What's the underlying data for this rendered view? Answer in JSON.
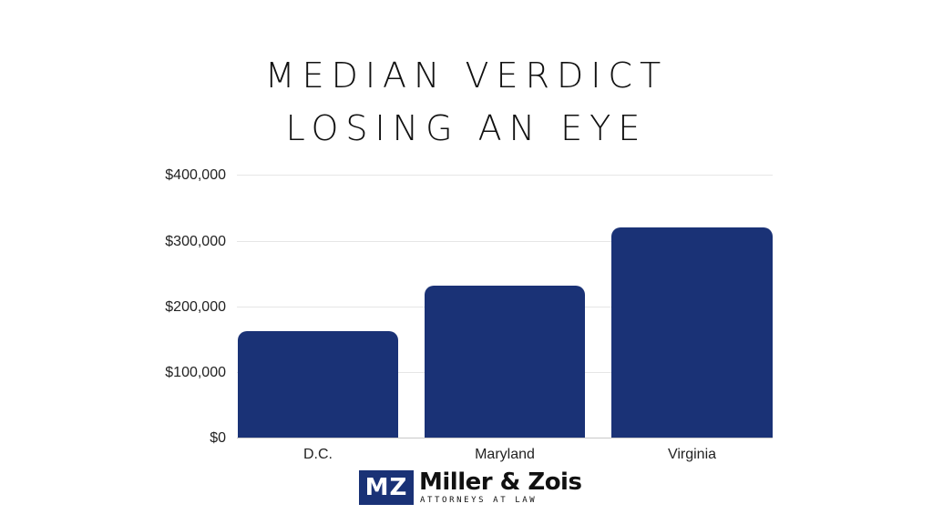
{
  "title": {
    "line1": "MEDIAN VERDICT",
    "line2": "LOSING AN EYE"
  },
  "y_axis": {
    "ticks": [
      "$400,000",
      "$300,000",
      "$200,000",
      "$100,000",
      "$0"
    ]
  },
  "x_axis": {
    "categories": [
      "D.C.",
      "Maryland",
      "Virginia"
    ]
  },
  "colors": {
    "bar": "#1a3276",
    "grid": "#e6e6e6"
  },
  "logo": {
    "mark": "MZ",
    "name": "Miller & Zois",
    "tagline": "ATTORNEYS AT LAW"
  },
  "chart_data": {
    "type": "bar",
    "title": "Median Verdict Losing an Eye",
    "categories": [
      "D.C.",
      "Maryland",
      "Virginia"
    ],
    "values": [
      162000,
      232000,
      321000
    ],
    "xlabel": "",
    "ylabel": "",
    "ylim": [
      0,
      400000
    ],
    "yticks": [
      0,
      100000,
      200000,
      300000,
      400000
    ],
    "ytick_labels": [
      "$0",
      "$100,000",
      "$200,000",
      "$300,000",
      "$400,000"
    ],
    "grid": true,
    "legend": null,
    "bar_color": "#1a3276"
  }
}
